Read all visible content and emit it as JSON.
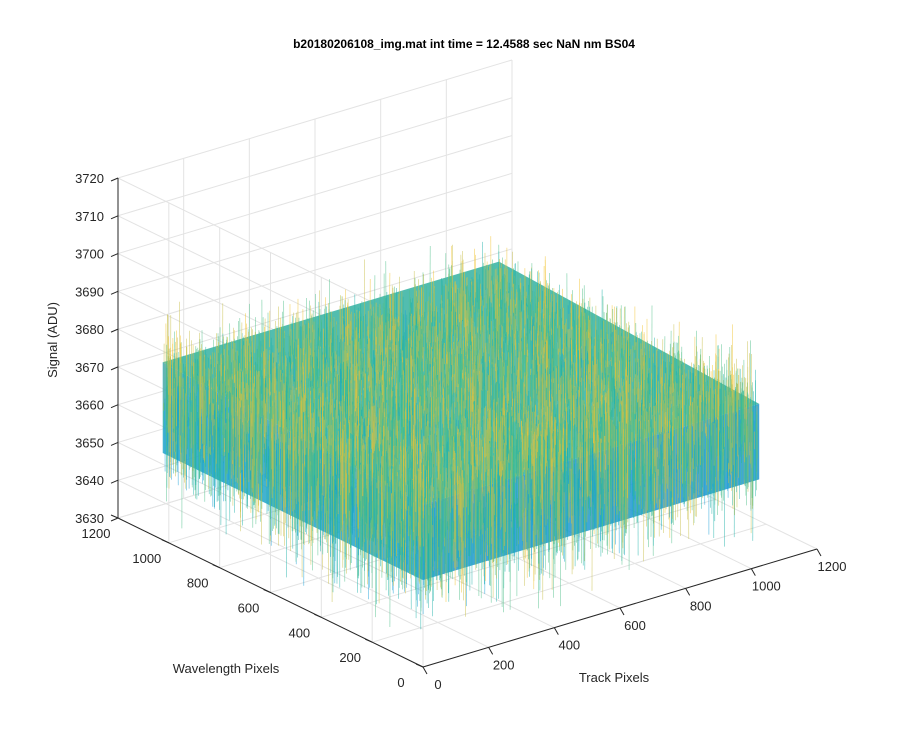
{
  "chart_data": {
    "type": "surface",
    "title": "b20180206108_img.mat int time = 12.4588 sec  NaN nm BS04",
    "xlabel": "Track Pixels",
    "ylabel": "Wavelength Pixels",
    "zlabel": "Signal (ADU)",
    "xlim": [
      0,
      1200
    ],
    "ylim": [
      0,
      1200
    ],
    "zlim": [
      3630,
      3720
    ],
    "x_ticks": [
      "0",
      "200",
      "400",
      "600",
      "800",
      "1000",
      "1200"
    ],
    "y_ticks": [
      "0",
      "200",
      "400",
      "600",
      "800",
      "1000",
      "1200"
    ],
    "z_ticks": [
      "3630",
      "3640",
      "3650",
      "3660",
      "3670",
      "3680",
      "3690",
      "3700",
      "3710",
      "3720"
    ],
    "data_extent": {
      "x": [
        0,
        1024
      ],
      "y": [
        0,
        1024
      ]
    },
    "signal_mean": 3667,
    "signal_range": [
      3635,
      3705
    ],
    "grid": true,
    "colormap": "parula",
    "colors": [
      "#0072bd",
      "#1a9fd8",
      "#20b2aa",
      "#4fc08a",
      "#c9c04a",
      "#f2c431"
    ]
  }
}
